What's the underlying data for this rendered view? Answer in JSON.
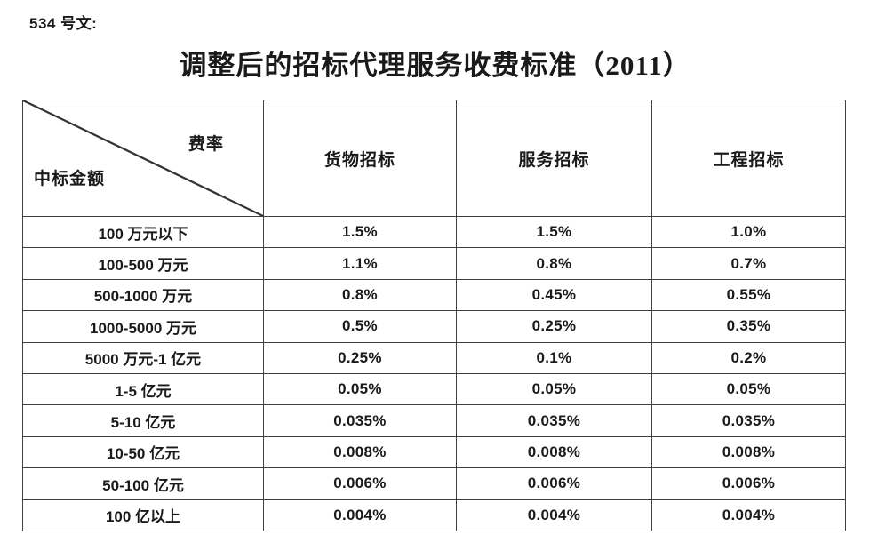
{
  "page": {
    "doc_label": "534 号文:",
    "title": "调整后的招标代理服务收费标准（2011）"
  },
  "table": {
    "corner": {
      "top_right": "费率",
      "bottom_left": "中标金额"
    },
    "columns": [
      "货物招标",
      "服务招标",
      "工程招标"
    ],
    "rows": [
      {
        "range": "100 万元以下",
        "values": [
          "1.5%",
          "1.5%",
          "1.0%"
        ]
      },
      {
        "range": "100-500 万元",
        "values": [
          "1.1%",
          "0.8%",
          "0.7%"
        ]
      },
      {
        "range": "500-1000 万元",
        "values": [
          "0.8%",
          "0.45%",
          "0.55%"
        ]
      },
      {
        "range": "1000-5000 万元",
        "values": [
          "0.5%",
          "0.25%",
          "0.35%"
        ]
      },
      {
        "range": "5000 万元-1 亿元",
        "values": [
          "0.25%",
          "0.1%",
          "0.2%"
        ]
      },
      {
        "range": "1-5 亿元",
        "values": [
          "0.05%",
          "0.05%",
          "0.05%"
        ]
      },
      {
        "range": "5-10 亿元",
        "values": [
          "0.035%",
          "0.035%",
          "0.035%"
        ]
      },
      {
        "range": "10-50 亿元",
        "values": [
          "0.008%",
          "0.008%",
          "0.008%"
        ]
      },
      {
        "range": "50-100 亿元",
        "values": [
          "0.006%",
          "0.006%",
          "0.006%"
        ]
      },
      {
        "range": "100 亿以上",
        "values": [
          "0.004%",
          "0.004%",
          "0.004%"
        ]
      }
    ]
  },
  "colors": {
    "text": "#1a1a1a",
    "border": "#404040",
    "background": "#ffffff"
  }
}
